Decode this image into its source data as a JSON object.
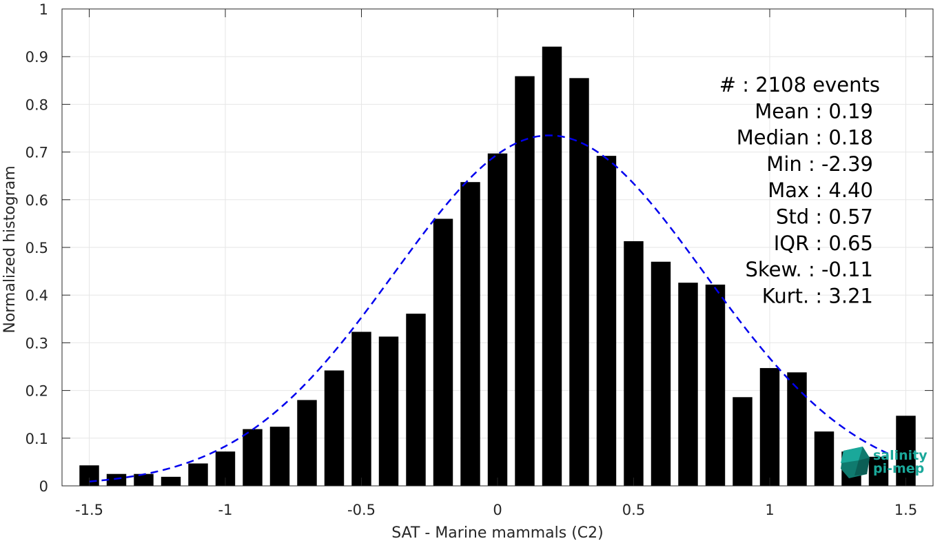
{
  "chart_data": {
    "type": "bar",
    "xlabel": "SAT - Marine mammals (C2)",
    "ylabel": "Normalized histogram",
    "xlim": [
      -1.6,
      1.6
    ],
    "ylim": [
      0,
      1
    ],
    "xticks": [
      -1.5,
      -1,
      -0.5,
      0,
      0.5,
      1,
      1.5
    ],
    "xtick_labels": [
      "-1.5",
      "-1",
      "-0.5",
      "0",
      "0.5",
      "1",
      "1.5"
    ],
    "yticks": [
      0,
      0.1,
      0.2,
      0.3,
      0.4,
      0.5,
      0.6,
      0.7,
      0.8,
      0.9,
      1
    ],
    "ytick_labels": [
      "0",
      "0.1",
      "0.2",
      "0.3",
      "0.4",
      "0.5",
      "0.6",
      "0.7",
      "0.8",
      "0.9",
      "1"
    ],
    "grid": true,
    "bar_color": "#000000",
    "fit_color": "#0000ee",
    "bins": [
      -1.5,
      -1.4,
      -1.3,
      -1.2,
      -1.1,
      -1.0,
      -0.9,
      -0.8,
      -0.7,
      -0.6,
      -0.5,
      -0.4,
      -0.3,
      -0.2,
      -0.1,
      0.0,
      0.1,
      0.2,
      0.3,
      0.4,
      0.5,
      0.6,
      0.7,
      0.8,
      0.9,
      1.0,
      1.1,
      1.2,
      1.3,
      1.4,
      1.5
    ],
    "values": [
      0.043,
      0.025,
      0.025,
      0.019,
      0.047,
      0.072,
      0.119,
      0.124,
      0.18,
      0.242,
      0.323,
      0.313,
      0.361,
      0.56,
      0.637,
      0.697,
      0.859,
      0.921,
      0.855,
      0.692,
      0.513,
      0.47,
      0.426,
      0.422,
      0.186,
      0.247,
      0.238,
      0.114,
      0.072,
      0.061,
      0.147
    ],
    "fit": {
      "type": "gaussian",
      "mean": 0.19,
      "std": 0.57,
      "x_range": [
        -1.5,
        1.45
      ]
    },
    "annotations": [
      {
        "label": "#  : ",
        "value": "2108 events"
      },
      {
        "label": "Mean : ",
        "value": "0.19"
      },
      {
        "label": "Median : ",
        "value": "0.18"
      },
      {
        "label": "Min : ",
        "value": "-2.39"
      },
      {
        "label": "Max : ",
        "value": "4.40"
      },
      {
        "label": "Std : ",
        "value": "0.57"
      },
      {
        "label": "IQR : ",
        "value": "0.65"
      },
      {
        "label": "Skew. : ",
        "value": "-0.11"
      },
      {
        "label": "Kurt. : ",
        "value": "3.21"
      }
    ]
  },
  "logo": {
    "line1": "salinity",
    "line2": "pi-mep",
    "color": "#1aa89a"
  }
}
